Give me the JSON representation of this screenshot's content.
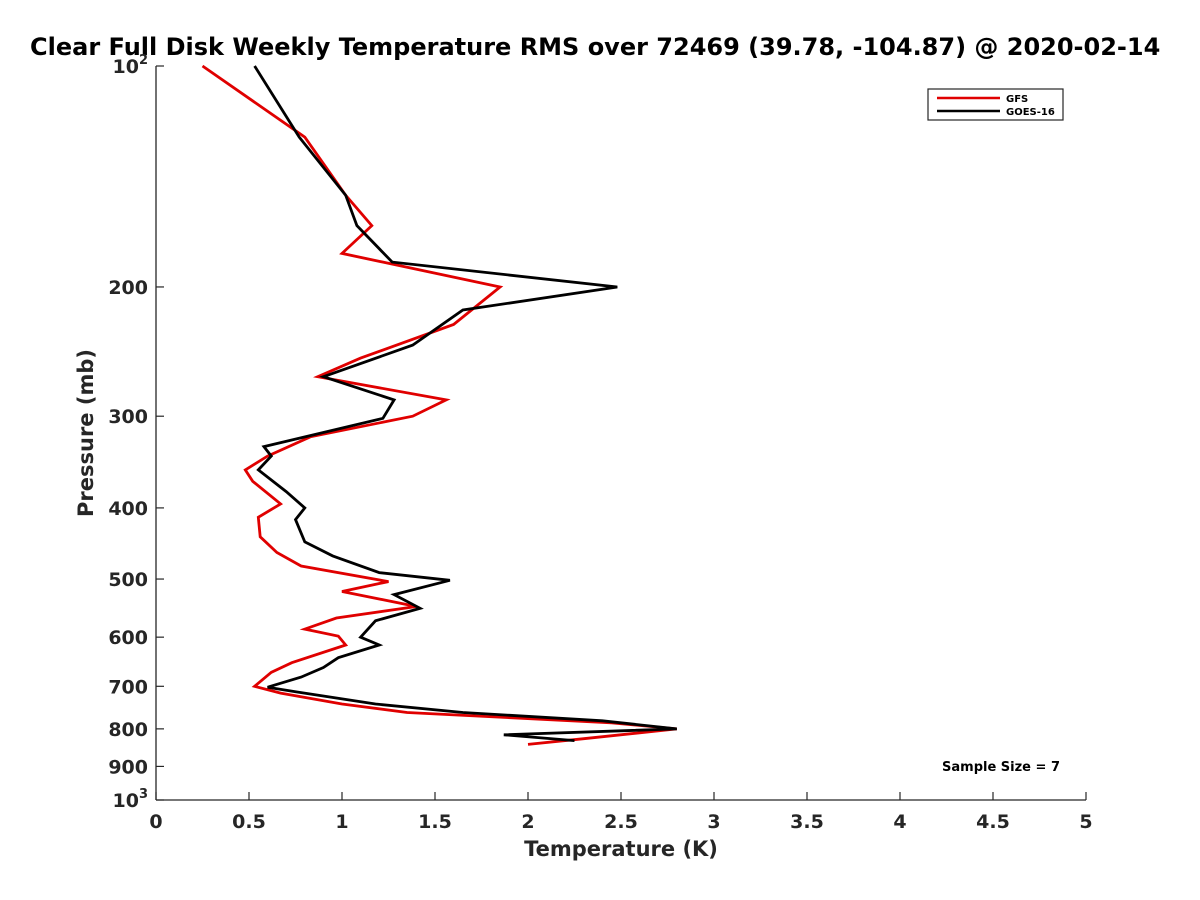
{
  "chart_data": {
    "type": "line",
    "title": "Clear Full Disk Weekly Temperature RMS over 72469 (39.78, -104.87) @ 2020-02-14",
    "xlabel": "Temperature (K)",
    "ylabel": "Pressure (mb)",
    "xlim": [
      0,
      5
    ],
    "ylim": [
      1000,
      100
    ],
    "yscale": "log",
    "x_ticks": [
      0,
      0.5,
      1,
      1.5,
      2,
      2.5,
      3,
      3.5,
      4,
      4.5,
      5
    ],
    "x_tick_labels": [
      "0",
      "0.5",
      "1",
      "1.5",
      "2",
      "2.5",
      "3",
      "3.5",
      "4",
      "4.5",
      "5"
    ],
    "y_ticks": [
      100,
      200,
      300,
      400,
      500,
      600,
      700,
      800,
      900,
      1000
    ],
    "y_tick_labels": [
      {
        "base": "10",
        "exp": "2"
      },
      {
        "base": "200",
        "exp": ""
      },
      {
        "base": "300",
        "exp": ""
      },
      {
        "base": "400",
        "exp": ""
      },
      {
        "base": "500",
        "exp": ""
      },
      {
        "base": "600",
        "exp": ""
      },
      {
        "base": "700",
        "exp": ""
      },
      {
        "base": "800",
        "exp": ""
      },
      {
        "base": "900",
        "exp": ""
      },
      {
        "base": "10",
        "exp": "3"
      }
    ],
    "grid": false,
    "legend_position": "top-right",
    "series": [
      {
        "name": "GFS",
        "color": "#e00000",
        "points": [
          [
            0.25,
            100
          ],
          [
            0.8,
            125
          ],
          [
            1.02,
            150
          ],
          [
            1.16,
            165
          ],
          [
            1.0,
            180
          ],
          [
            1.85,
            200
          ],
          [
            1.6,
            225
          ],
          [
            1.1,
            250
          ],
          [
            0.87,
            265
          ],
          [
            1.56,
            285
          ],
          [
            1.38,
            300
          ],
          [
            0.83,
            320
          ],
          [
            0.6,
            340
          ],
          [
            0.48,
            355
          ],
          [
            0.52,
            368
          ],
          [
            0.67,
            395
          ],
          [
            0.55,
            412
          ],
          [
            0.56,
            438
          ],
          [
            0.65,
            460
          ],
          [
            0.78,
            480
          ],
          [
            1.25,
            504
          ],
          [
            1.0,
            520
          ],
          [
            1.4,
            545
          ],
          [
            0.97,
            565
          ],
          [
            0.8,
            585
          ],
          [
            0.98,
            598
          ],
          [
            1.02,
            615
          ],
          [
            0.73,
            650
          ],
          [
            0.62,
            670
          ],
          [
            0.53,
            700
          ],
          [
            0.67,
            715
          ],
          [
            1.0,
            740
          ],
          [
            1.35,
            760
          ],
          [
            2.45,
            785
          ],
          [
            2.8,
            800
          ],
          [
            2.3,
            825
          ],
          [
            2.0,
            840
          ]
        ]
      },
      {
        "name": "GOES-16",
        "color": "#000000",
        "points": [
          [
            0.53,
            100
          ],
          [
            0.77,
            125
          ],
          [
            1.02,
            150
          ],
          [
            1.08,
            165
          ],
          [
            1.27,
            185
          ],
          [
            2.48,
            200
          ],
          [
            1.65,
            215
          ],
          [
            1.38,
            240
          ],
          [
            0.9,
            265
          ],
          [
            1.28,
            285
          ],
          [
            1.22,
            302
          ],
          [
            0.58,
            330
          ],
          [
            0.62,
            340
          ],
          [
            0.55,
            355
          ],
          [
            0.7,
            380
          ],
          [
            0.8,
            400
          ],
          [
            0.75,
            415
          ],
          [
            0.8,
            445
          ],
          [
            0.95,
            465
          ],
          [
            1.2,
            490
          ],
          [
            1.58,
            502
          ],
          [
            1.28,
            525
          ],
          [
            1.42,
            548
          ],
          [
            1.18,
            570
          ],
          [
            1.1,
            600
          ],
          [
            1.2,
            615
          ],
          [
            0.98,
            640
          ],
          [
            0.9,
            660
          ],
          [
            0.78,
            680
          ],
          [
            0.6,
            702
          ],
          [
            0.75,
            712
          ],
          [
            1.18,
            740
          ],
          [
            1.65,
            760
          ],
          [
            2.4,
            780
          ],
          [
            2.8,
            800
          ],
          [
            1.87,
            815
          ],
          [
            2.25,
            830
          ]
        ]
      }
    ],
    "annotation": "Sample Size = 7"
  }
}
